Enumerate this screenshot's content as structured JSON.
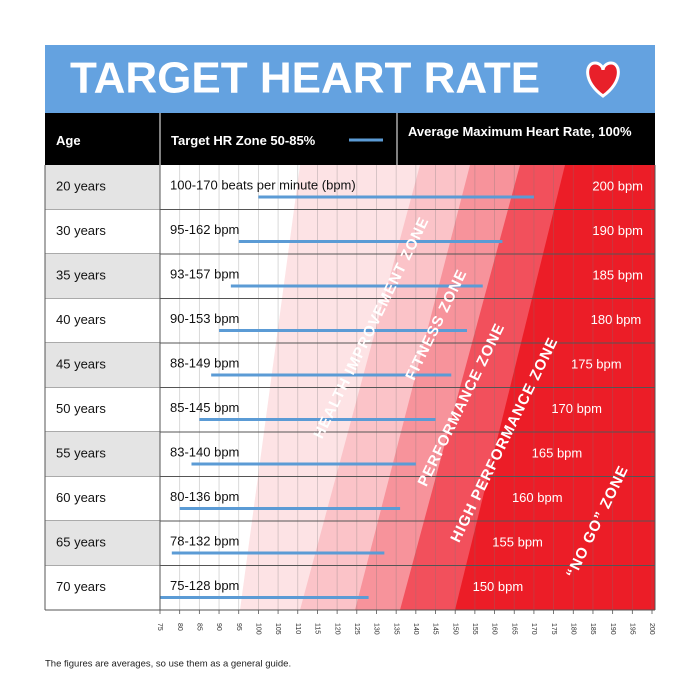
{
  "chart_data": {
    "type": "range-bar",
    "title": "TARGET HEART RATE",
    "columns": [
      "Age",
      "Target HR Zone 50-85%",
      "Average Maximum Heart Rate, 100%"
    ],
    "categories": [
      "20 years",
      "30 years",
      "35 years",
      "40 years",
      "45 years",
      "50 years",
      "55 years",
      "60 years",
      "65 years",
      "70 years"
    ],
    "low": [
      100,
      95,
      93,
      90,
      88,
      85,
      83,
      80,
      78,
      75
    ],
    "high": [
      170,
      162,
      157,
      153,
      149,
      145,
      140,
      136,
      132,
      128
    ],
    "value_labels": [
      "100-170 beats per minute (bpm)",
      "95-162 bpm",
      "93-157 bpm",
      "90-153 bpm",
      "88-149 bpm",
      "85-145 bpm",
      "83-140 bpm",
      "80-136 bpm",
      "78-132 bpm",
      "75-128 bpm"
    ],
    "max": [
      200,
      190,
      185,
      180,
      175,
      170,
      165,
      160,
      155,
      150
    ],
    "max_labels": [
      "200 bpm",
      "190 bpm",
      "185 bpm",
      "180 bpm",
      "175 bpm",
      "170 bpm",
      "165 bpm",
      "160 bpm",
      "155 bpm",
      "150 bpm"
    ],
    "color": "#5b9bd5",
    "xlim": [
      75,
      200
    ],
    "xticks": [
      75,
      80,
      85,
      90,
      95,
      100,
      105,
      110,
      115,
      120,
      125,
      130,
      135,
      140,
      145,
      150,
      155,
      160,
      165,
      170,
      175,
      180,
      185,
      190,
      195,
      200
    ],
    "zones": [
      "HEALTH IMPROVEMENT ZONE",
      "FITNESS ZONE",
      "PERFORMANCE ZONE",
      "HIGH PERFORMANCE ZONE",
      "“NO GO” ZONE"
    ],
    "footnote": "The figures are averages, so use them as a general guide."
  }
}
